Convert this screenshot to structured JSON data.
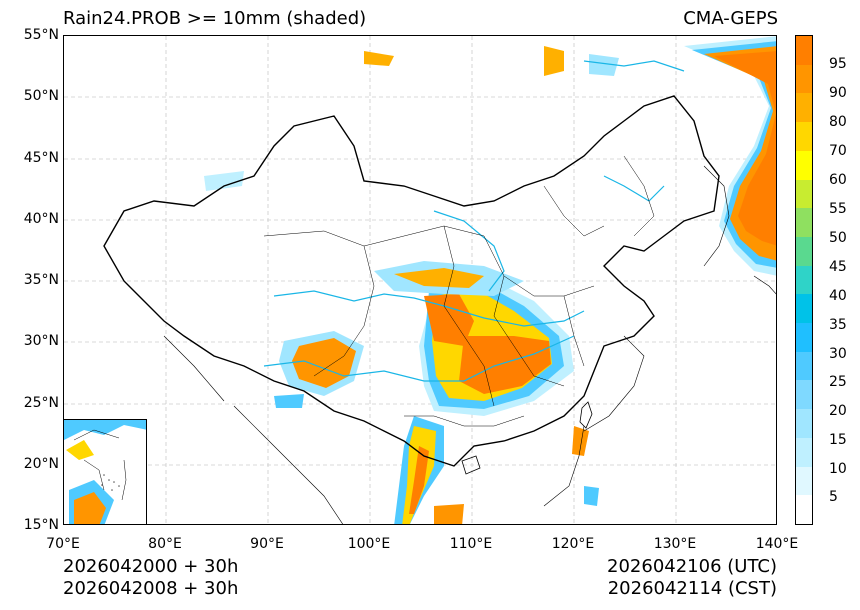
{
  "header": {
    "title_left": "Rain24.PROB >= 10mm (shaded)",
    "title_right": "CMA-GEPS"
  },
  "axes": {
    "lat_labels": [
      "55°N",
      "50°N",
      "45°N",
      "40°N",
      "35°N",
      "30°N",
      "25°N",
      "20°N",
      "15°N"
    ],
    "lon_labels": [
      "70°E",
      "80°E",
      "90°E",
      "100°E",
      "110°E",
      "120°E",
      "130°E",
      "140°E"
    ]
  },
  "colorbar": {
    "labels": [
      "95",
      "90",
      "80",
      "70",
      "60",
      "55",
      "50",
      "45",
      "40",
      "35",
      "30",
      "25",
      "20",
      "15",
      "10",
      "5"
    ],
    "colors": [
      "#ffffff",
      "#e0f8ff",
      "#bff0ff",
      "#a0e6ff",
      "#7fd9ff",
      "#4fcaff",
      "#1fbfff",
      "#00c2e8",
      "#2fd3c8",
      "#5ad98f",
      "#8fe060",
      "#c8ec30",
      "#ffff00",
      "#ffd700",
      "#ffb000",
      "#ff9500",
      "#ff7f00"
    ]
  },
  "footer": {
    "init_utc": "2026042000 + 30h",
    "init_cst": "2026042008 + 30h",
    "valid_utc": "2026042106 (UTC)",
    "valid_cst": "2026042114 (CST)"
  }
}
